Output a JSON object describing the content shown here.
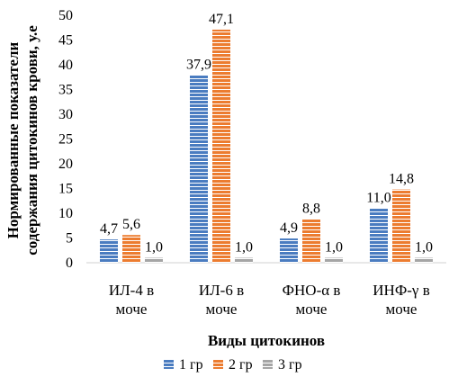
{
  "chart_data": {
    "type": "bar",
    "title": "",
    "xlabel": "Виды цитокинов",
    "ylabel_lines": [
      "Нормированные показатели",
      "содержания цитокинов крови, у.е"
    ],
    "categories": [
      [
        "ИЛ-4 в",
        "моче"
      ],
      [
        "ИЛ-6 в",
        "моче"
      ],
      [
        "ФНО-α в",
        "моче"
      ],
      [
        "ИНФ-γ в",
        "моче"
      ]
    ],
    "series": [
      {
        "name": "1 гр",
        "color": "#4a7cc0",
        "values": [
          4.7,
          37.9,
          4.9,
          11.0
        ],
        "labels": [
          "4,7",
          "37,9",
          "4,9",
          "11,0"
        ]
      },
      {
        "name": "2 гр",
        "color": "#ec7c30",
        "values": [
          5.6,
          47.1,
          8.8,
          14.8
        ],
        "labels": [
          "5,6",
          "47,1",
          "8,8",
          "14,8"
        ]
      },
      {
        "name": "3 гр",
        "color": "#a5a5a5",
        "values": [
          1.0,
          1.0,
          1.0,
          1.0
        ],
        "labels": [
          "1,0",
          "1,0",
          "1,0",
          "1,0"
        ]
      }
    ],
    "yticks": [
      0,
      5,
      10,
      15,
      20,
      25,
      30,
      35,
      40,
      45,
      50
    ],
    "ylim": [
      0,
      50
    ],
    "grid": false,
    "legend": "bottom"
  }
}
